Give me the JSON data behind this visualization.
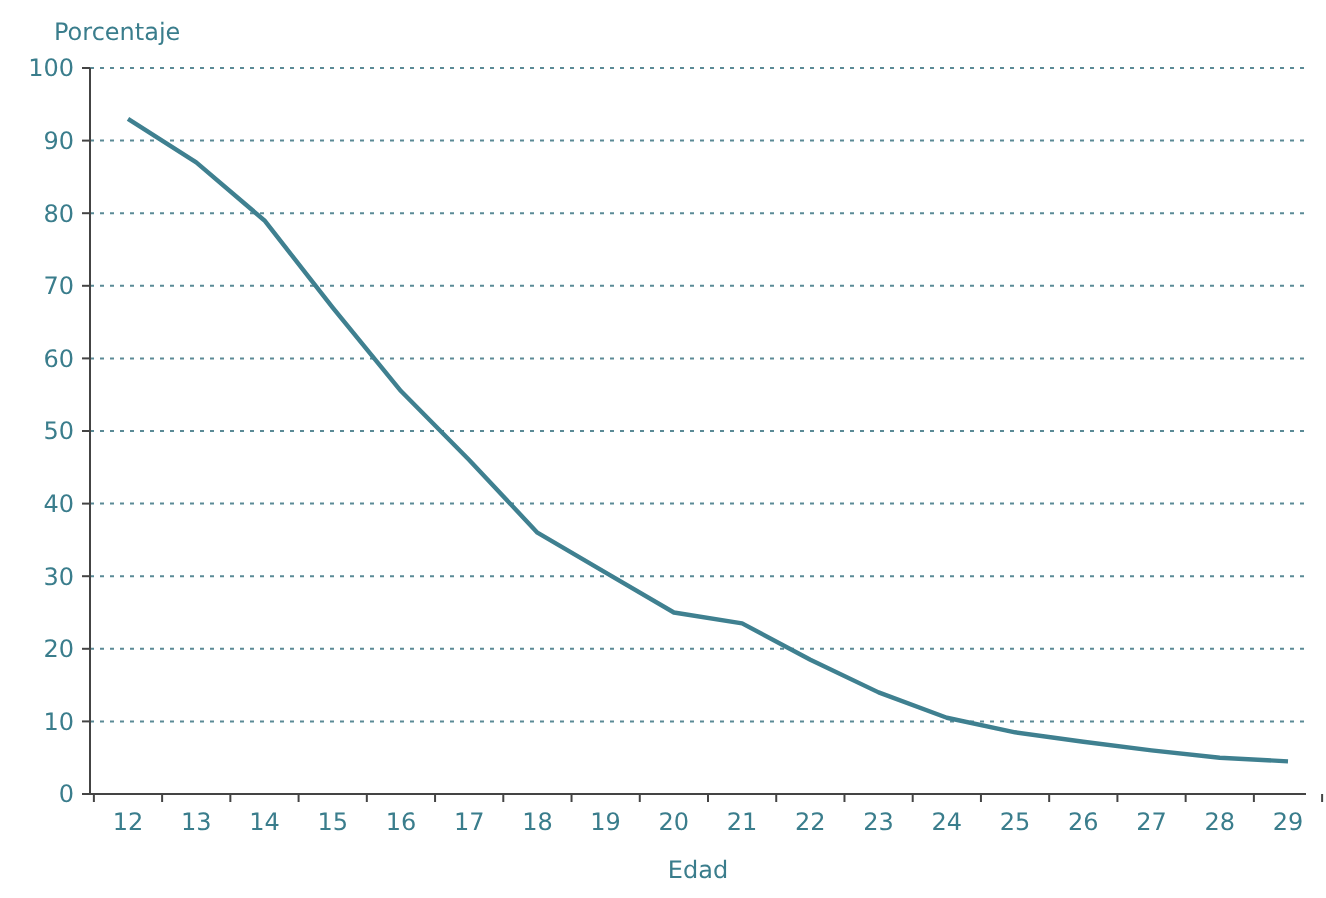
{
  "chart_data": {
    "type": "line",
    "xlabel": "Edad",
    "ylabel": "Porcentaje",
    "categories": [
      "12",
      "13",
      "14",
      "15",
      "16",
      "17",
      "18",
      "19",
      "20",
      "21",
      "22",
      "23",
      "24",
      "25",
      "26",
      "27",
      "28",
      "29"
    ],
    "series": [
      {
        "color": "#3f8090",
        "values": [
          93,
          87,
          79,
          67,
          55.5,
          46,
          36,
          30.5,
          25,
          23.5,
          18.5,
          14,
          10.5,
          8.5,
          7.2,
          6,
          5,
          4.5
        ]
      }
    ],
    "ylim": [
      0,
      100
    ],
    "yticks": [
      0,
      10,
      20,
      30,
      40,
      50,
      60,
      70,
      80,
      90,
      100
    ],
    "grid": "y",
    "line_style": "solid",
    "marker": "none"
  }
}
